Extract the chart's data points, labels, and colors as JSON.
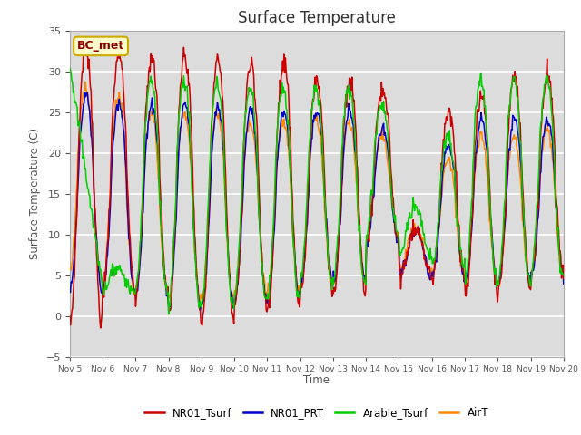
{
  "title": "Surface Temperature",
  "ylabel": "Surface Temperature (C)",
  "xlabel": "Time",
  "annotation": "BC_met",
  "ylim": [
    -5,
    35
  ],
  "legend_labels": [
    "NR01_Tsurf",
    "NR01_PRT",
    "Arable_Tsurf",
    "AirT"
  ],
  "colors": [
    "#cc0000",
    "#0000cc",
    "#00cc00",
    "#ff8800"
  ],
  "bg_color": "#dcdcdc",
  "grid_color": "white",
  "xtick_labels": [
    "Nov 5",
    "Nov 6",
    "Nov 7",
    "Nov 8",
    "Nov 9",
    "Nov 10",
    "Nov 11",
    "Nov 12",
    "Nov 13",
    "Nov 14",
    "Nov 15",
    "Nov 16",
    "Nov 17",
    "Nov 18",
    "Nov 19",
    "Nov 20"
  ],
  "yticks": [
    -5,
    0,
    5,
    10,
    15,
    20,
    25,
    30,
    35
  ],
  "figsize": [
    6.4,
    4.8
  ],
  "dpi": 100
}
